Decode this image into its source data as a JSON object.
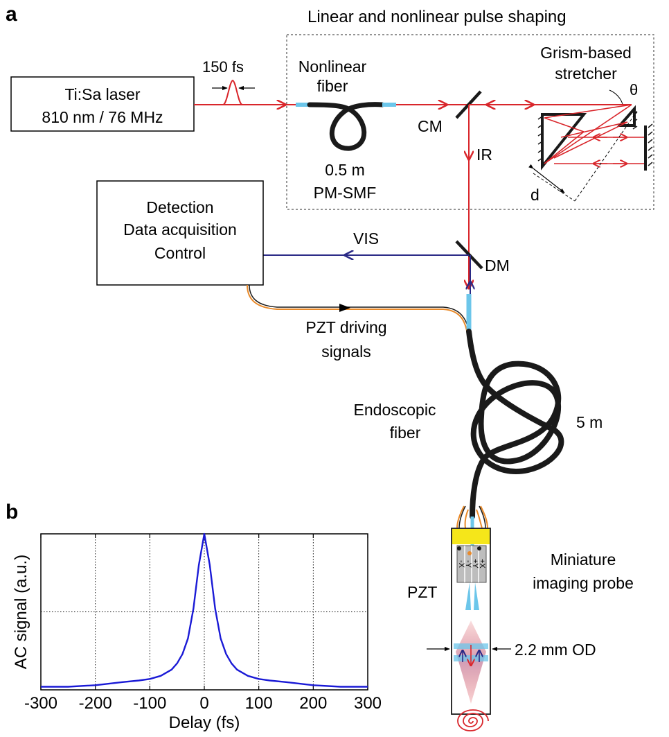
{
  "panel_a": {
    "letter": "a",
    "region_title": "Linear and nonlinear pulse shaping",
    "laser": {
      "line1": "Ti:Sa laser",
      "line2": "810 nm / 76 MHz"
    },
    "pulse_width": "150 fs",
    "nonlinear_fiber": {
      "line1": "Nonlinear",
      "line2": "fiber",
      "spec1": "0.5 m",
      "spec2": "PM-SMF"
    },
    "stretcher": {
      "line1": "Grism-based",
      "line2": "stretcher",
      "angle": "θ",
      "distance": "d"
    },
    "cm": "CM",
    "ir": "IR",
    "vis": "VIS",
    "dm": "DM",
    "detection": {
      "line1": "Detection",
      "line2": "Data acquisition",
      "line3": "Control"
    },
    "pzt_signals": {
      "line1": "PZT driving",
      "line2": "signals"
    },
    "endoscopic_fiber": {
      "line1": "Endoscopic",
      "line2": "fiber",
      "length": "5 m"
    },
    "probe": {
      "line1": "Miniature",
      "line2": "imaging probe",
      "pzt": "PZT",
      "od": "2.2 mm OD",
      "electrode_labels": [
        "-X",
        "-Y",
        "+Y",
        "+X"
      ]
    }
  },
  "colors": {
    "beam_ir": "#d9262b",
    "beam_vis": "#2b2a86",
    "fiber": "#1a1a1a",
    "fiber_tip": "#6cc6ea",
    "curve": "#1a1ad6",
    "probe_cap": "#f5e61a"
  },
  "chart_data": {
    "panel_letter": "b",
    "type": "line",
    "xlabel": "Delay (fs)",
    "ylabel": "AC signal (a.u.)",
    "xlim": [
      -300,
      300
    ],
    "ylim": [
      0,
      1
    ],
    "xticks": [
      -300,
      -200,
      -100,
      0,
      100,
      200,
      300
    ],
    "grid": true,
    "series": [
      {
        "x": [
          -300,
          -250,
          -200,
          -150,
          -120,
          -100,
          -80,
          -60,
          -50,
          -40,
          -30,
          -20,
          -10,
          0,
          10,
          20,
          30,
          40,
          50,
          60,
          80,
          100,
          120,
          150,
          200,
          250,
          300
        ],
        "y": [
          0.02,
          0.02,
          0.03,
          0.05,
          0.06,
          0.07,
          0.09,
          0.13,
          0.17,
          0.23,
          0.33,
          0.52,
          0.8,
          1.0,
          0.8,
          0.52,
          0.33,
          0.23,
          0.17,
          0.13,
          0.09,
          0.07,
          0.06,
          0.05,
          0.03,
          0.02,
          0.02
        ]
      }
    ]
  }
}
